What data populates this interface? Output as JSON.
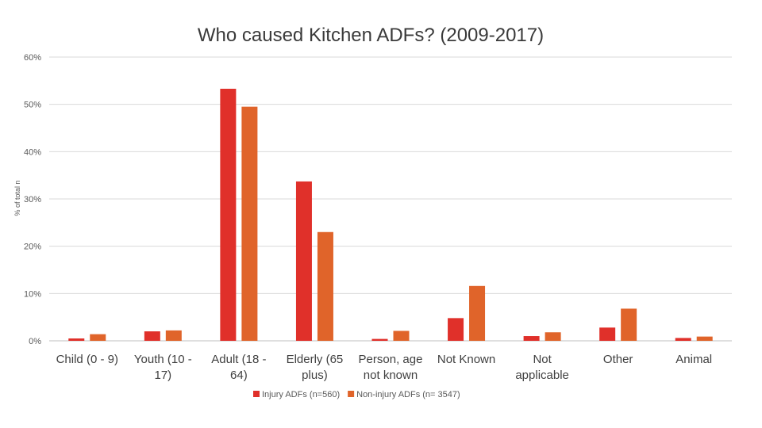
{
  "chart_data": {
    "type": "bar",
    "title": "Who caused Kitchen ADFs? (2009-2017)",
    "ylabel": "% of total n",
    "xlabel": "",
    "ylim": [
      0,
      60
    ],
    "yticks": [
      "0%",
      "10%",
      "20%",
      "30%",
      "40%",
      "50%",
      "60%"
    ],
    "grid": true,
    "legend_position": "bottom",
    "categories": [
      [
        "Child (0 - 9)"
      ],
      [
        "Youth (10 -",
        "17)"
      ],
      [
        "Adult (18 -",
        "64)"
      ],
      [
        "Elderly (65",
        "plus)"
      ],
      [
        "Person, age",
        "not known"
      ],
      [
        "Not Known"
      ],
      [
        "Not",
        "applicable"
      ],
      [
        "Other"
      ],
      [
        "Animal"
      ]
    ],
    "series": [
      {
        "name": "Injury ADFs (n=560)",
        "color": "#e0302a",
        "values": [
          0.5,
          2.0,
          53.3,
          33.7,
          0.4,
          4.8,
          1.0,
          2.8,
          0.6
        ]
      },
      {
        "name": "Non-injury ADFs (n= 3547)",
        "color": "#e0642a",
        "values": [
          1.4,
          2.2,
          49.5,
          23.0,
          2.1,
          11.6,
          1.8,
          6.8,
          0.9
        ]
      }
    ]
  }
}
